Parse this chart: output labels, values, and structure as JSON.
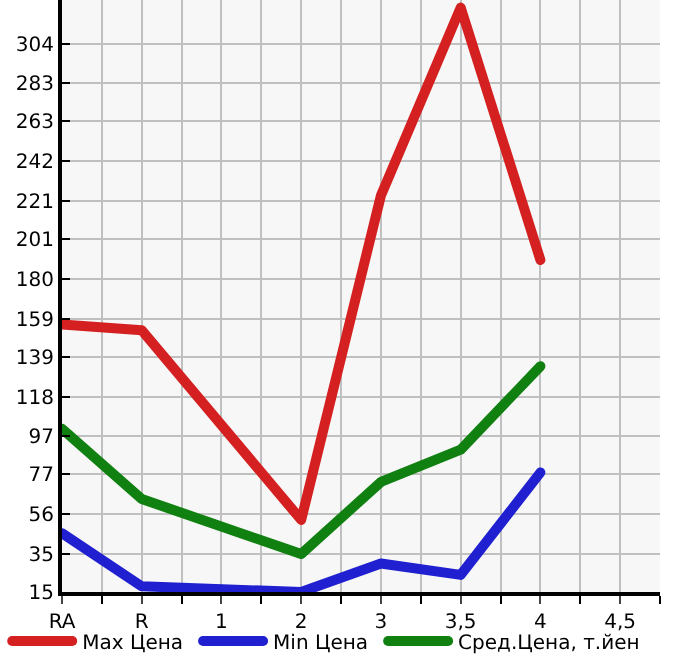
{
  "chart_data": {
    "type": "line",
    "categories": [
      "RA",
      "R",
      "1",
      "2",
      "3",
      "3,5",
      "4",
      "4,5"
    ],
    "series": [
      {
        "name": "Max Цена",
        "color": "#d42020",
        "values": [
          156,
          153,
          null,
          53,
          224,
          323,
          190,
          null
        ]
      },
      {
        "name": "Min Цена",
        "color": "#2020d0",
        "values": [
          46,
          18,
          null,
          15,
          30,
          24,
          78,
          null
        ]
      },
      {
        "name": "Сред.Цена, т.йен",
        "color": "#108010",
        "values": [
          101,
          64,
          null,
          35,
          73,
          90,
          134,
          null
        ]
      }
    ],
    "ylim": [
      15,
      327
    ],
    "yticks": [
      15,
      35,
      56,
      77,
      97,
      118,
      139,
      159,
      180,
      201,
      221,
      242,
      263,
      283,
      304
    ],
    "grid": true,
    "legend": "bottom",
    "marker": "none",
    "line_style": "solid"
  }
}
